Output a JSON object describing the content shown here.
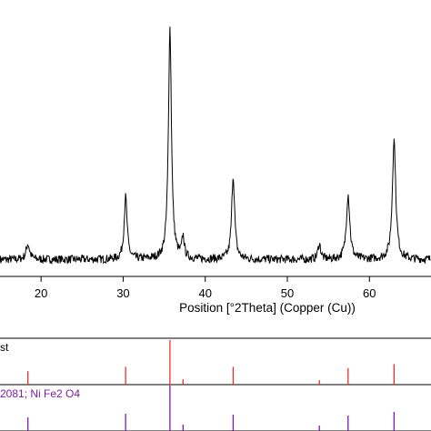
{
  "chart_data": [
    {
      "type": "line",
      "xlabel": "Position [°2Theta] (Copper (Cu))",
      "ylabel": "",
      "xlim": [
        15.0,
        67.5
      ],
      "ylim": [
        0,
        100
      ],
      "x_ticks": [
        20,
        30,
        40,
        50,
        60
      ],
      "grid": false,
      "line_color": "#000000",
      "baseline": 8,
      "peaks": [
        {
          "x": 18.4,
          "y": 14,
          "w": 0.25
        },
        {
          "x": 30.3,
          "y": 32,
          "w": 0.22
        },
        {
          "x": 35.7,
          "y": 97,
          "w": 0.22
        },
        {
          "x": 37.3,
          "y": 16,
          "w": 0.18
        },
        {
          "x": 43.4,
          "y": 40,
          "w": 0.22
        },
        {
          "x": 53.9,
          "y": 14,
          "w": 0.2
        },
        {
          "x": 57.4,
          "y": 33,
          "w": 0.25
        },
        {
          "x": 63.0,
          "y": 54,
          "w": 0.25
        }
      ]
    },
    {
      "type": "bar",
      "label": "st",
      "color": "#e8312a",
      "xlim": [
        15.0,
        67.5
      ],
      "sticks": [
        {
          "x": 18.4,
          "h": 0.3
        },
        {
          "x": 30.3,
          "h": 0.4
        },
        {
          "x": 35.7,
          "h": 1.0
        },
        {
          "x": 37.3,
          "h": 0.12
        },
        {
          "x": 43.4,
          "h": 0.4
        },
        {
          "x": 53.9,
          "h": 0.1
        },
        {
          "x": 57.4,
          "h": 0.37
        },
        {
          "x": 63.0,
          "h": 0.46
        }
      ]
    },
    {
      "type": "bar",
      "label": "2081; Ni Fe2 O4",
      "color": "#7b1fa2",
      "xlim": [
        15.0,
        67.5
      ],
      "sticks": [
        {
          "x": 18.4,
          "h": 0.3
        },
        {
          "x": 30.3,
          "h": 0.38
        },
        {
          "x": 35.7,
          "h": 1.0
        },
        {
          "x": 37.3,
          "h": 0.14
        },
        {
          "x": 43.4,
          "h": 0.36
        },
        {
          "x": 53.9,
          "h": 0.12
        },
        {
          "x": 57.4,
          "h": 0.34
        },
        {
          "x": 63.0,
          "h": 0.42
        }
      ]
    }
  ]
}
